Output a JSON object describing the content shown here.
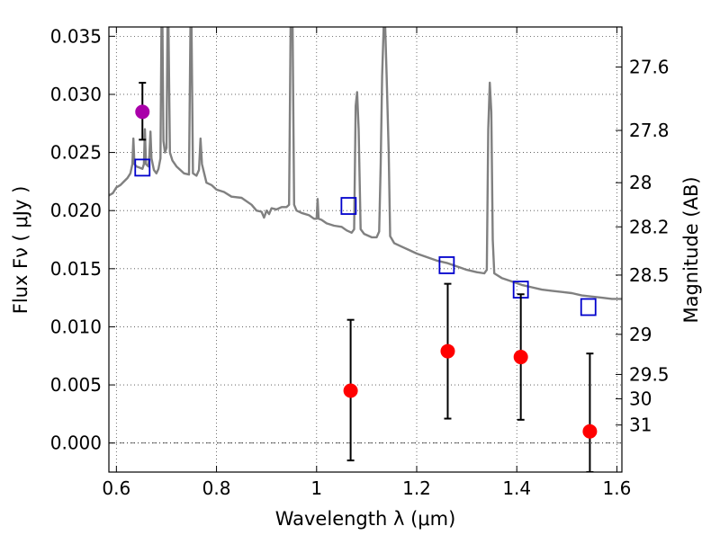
{
  "chart_data": {
    "type": "scatter",
    "xlabel": "Wavelength  λ (μm)",
    "ylabel": "Flux  Fν  ( μJy )",
    "ylabel_right": "Magnitude (AB)",
    "xlim": [
      0.585,
      1.61
    ],
    "ylim": [
      -0.0025,
      0.0358
    ],
    "grid": true,
    "x_ticks": [
      {
        "value": 0.6,
        "label": "0.6"
      },
      {
        "value": 0.8,
        "label": "0.8"
      },
      {
        "value": 1.0,
        "label": "1"
      },
      {
        "value": 1.2,
        "label": "1.2"
      },
      {
        "value": 1.4,
        "label": "1.4"
      },
      {
        "value": 1.6,
        "label": "1.6"
      }
    ],
    "y_ticks": [
      {
        "value": 0.0,
        "label": "0.000"
      },
      {
        "value": 0.005,
        "label": "0.005"
      },
      {
        "value": 0.01,
        "label": "0.010"
      },
      {
        "value": 0.015,
        "label": "0.015"
      },
      {
        "value": 0.02,
        "label": "0.020"
      },
      {
        "value": 0.025,
        "label": "0.025"
      },
      {
        "value": 0.03,
        "label": "0.030"
      },
      {
        "value": 0.035,
        "label": "0.035"
      }
    ],
    "mag_ticks": [
      {
        "flux": 0.03235,
        "label": "27.6"
      },
      {
        "flux": 0.0269,
        "label": "27.8"
      },
      {
        "flux": 0.0224,
        "label": "28"
      },
      {
        "flux": 0.0186,
        "label": "28.2"
      },
      {
        "flux": 0.01445,
        "label": "28.5"
      },
      {
        "flux": 0.00935,
        "label": "29"
      },
      {
        "flux": 0.0059,
        "label": "29.5"
      },
      {
        "flux": 0.0038,
        "label": "30"
      },
      {
        "flux": 0.00155,
        "label": "31"
      }
    ],
    "series": [
      {
        "name": "model-spectrum",
        "kind": "line",
        "color": "#808080",
        "points": [
          [
            0.585,
            0.0213
          ],
          [
            0.593,
            0.0215
          ],
          [
            0.6,
            0.022
          ],
          [
            0.608,
            0.0222
          ],
          [
            0.615,
            0.0225
          ],
          [
            0.622,
            0.0228
          ],
          [
            0.628,
            0.0232
          ],
          [
            0.632,
            0.024
          ],
          [
            0.634,
            0.0262
          ],
          [
            0.636,
            0.024
          ],
          [
            0.64,
            0.0238
          ],
          [
            0.646,
            0.0237
          ],
          [
            0.652,
            0.0236
          ],
          [
            0.655,
            0.024
          ],
          [
            0.657,
            0.027
          ],
          [
            0.659,
            0.024
          ],
          [
            0.664,
            0.0238
          ],
          [
            0.666,
            0.0248
          ],
          [
            0.668,
            0.0268
          ],
          [
            0.67,
            0.0245
          ],
          [
            0.675,
            0.0235
          ],
          [
            0.68,
            0.0232
          ],
          [
            0.684,
            0.0236
          ],
          [
            0.688,
            0.0245
          ],
          [
            0.69,
            0.0358
          ],
          [
            0.692,
            0.0358
          ],
          [
            0.694,
            0.026
          ],
          [
            0.697,
            0.025
          ],
          [
            0.7,
            0.0254
          ],
          [
            0.702,
            0.0358
          ],
          [
            0.704,
            0.0358
          ],
          [
            0.707,
            0.025
          ],
          [
            0.712,
            0.0243
          ],
          [
            0.72,
            0.0238
          ],
          [
            0.735,
            0.0232
          ],
          [
            0.745,
            0.0231
          ],
          [
            0.748,
            0.0358
          ],
          [
            0.75,
            0.0358
          ],
          [
            0.753,
            0.0232
          ],
          [
            0.76,
            0.023
          ],
          [
            0.765,
            0.0235
          ],
          [
            0.768,
            0.0262
          ],
          [
            0.771,
            0.024
          ],
          [
            0.78,
            0.0224
          ],
          [
            0.79,
            0.0222
          ],
          [
            0.8,
            0.0218
          ],
          [
            0.815,
            0.0216
          ],
          [
            0.83,
            0.0212
          ],
          [
            0.85,
            0.0211
          ],
          [
            0.87,
            0.0205
          ],
          [
            0.88,
            0.02
          ],
          [
            0.89,
            0.0199
          ],
          [
            0.895,
            0.0194
          ],
          [
            0.9,
            0.02
          ],
          [
            0.905,
            0.0197
          ],
          [
            0.91,
            0.0202
          ],
          [
            0.92,
            0.0201
          ],
          [
            0.93,
            0.0203
          ],
          [
            0.94,
            0.0203
          ],
          [
            0.945,
            0.0205
          ],
          [
            0.948,
            0.0358
          ],
          [
            0.952,
            0.0358
          ],
          [
            0.955,
            0.0205
          ],
          [
            0.96,
            0.02
          ],
          [
            0.97,
            0.0198
          ],
          [
            0.985,
            0.0196
          ],
          [
            0.995,
            0.0193
          ],
          [
            1.0,
            0.0193
          ],
          [
            1.002,
            0.021
          ],
          [
            1.004,
            0.0193
          ],
          [
            1.01,
            0.0192
          ],
          [
            1.02,
            0.0189
          ],
          [
            1.035,
            0.0187
          ],
          [
            1.05,
            0.0186
          ],
          [
            1.06,
            0.0183
          ],
          [
            1.07,
            0.0181
          ],
          [
            1.075,
            0.0184
          ],
          [
            1.078,
            0.029
          ],
          [
            1.081,
            0.0302
          ],
          [
            1.084,
            0.027
          ],
          [
            1.088,
            0.0184
          ],
          [
            1.095,
            0.018
          ],
          [
            1.11,
            0.0177
          ],
          [
            1.12,
            0.0177
          ],
          [
            1.125,
            0.0182
          ],
          [
            1.128,
            0.024
          ],
          [
            1.131,
            0.0316
          ],
          [
            1.134,
            0.0358
          ],
          [
            1.137,
            0.0358
          ],
          [
            1.14,
            0.0316
          ],
          [
            1.144,
            0.025
          ],
          [
            1.147,
            0.0178
          ],
          [
            1.155,
            0.0172
          ],
          [
            1.17,
            0.0169
          ],
          [
            1.185,
            0.0166
          ],
          [
            1.2,
            0.0163
          ],
          [
            1.22,
            0.016
          ],
          [
            1.24,
            0.0157
          ],
          [
            1.26,
            0.0155
          ],
          [
            1.28,
            0.0152
          ],
          [
            1.3,
            0.0149
          ],
          [
            1.32,
            0.0147
          ],
          [
            1.335,
            0.0146
          ],
          [
            1.34,
            0.0149
          ],
          [
            1.343,
            0.027
          ],
          [
            1.346,
            0.031
          ],
          [
            1.349,
            0.0285
          ],
          [
            1.352,
            0.0175
          ],
          [
            1.355,
            0.0146
          ],
          [
            1.37,
            0.0142
          ],
          [
            1.39,
            0.0139
          ],
          [
            1.41,
            0.0136
          ],
          [
            1.43,
            0.0134
          ],
          [
            1.45,
            0.0132
          ],
          [
            1.47,
            0.0131
          ],
          [
            1.49,
            0.013
          ],
          [
            1.51,
            0.0129
          ],
          [
            1.53,
            0.0127
          ],
          [
            1.55,
            0.0126
          ],
          [
            1.57,
            0.0125
          ],
          [
            1.59,
            0.0124
          ],
          [
            1.61,
            0.0124
          ]
        ]
      },
      {
        "name": "model-photometry",
        "kind": "open-square",
        "color": "#0000cc",
        "points": [
          {
            "x": 0.652,
            "y": 0.0237
          },
          {
            "x": 1.064,
            "y": 0.0204
          },
          {
            "x": 1.26,
            "y": 0.0153
          },
          {
            "x": 1.408,
            "y": 0.0132
          },
          {
            "x": 1.543,
            "y": 0.0117
          }
        ]
      },
      {
        "name": "observed-photometry",
        "kind": "filled-circle-errorbar",
        "color": "#ff0000",
        "points": [
          {
            "x": 1.068,
            "y": 0.0045,
            "err_low": 0.006,
            "err_high": 0.0061
          },
          {
            "x": 1.262,
            "y": 0.0079,
            "err_low": 0.0058,
            "err_high": 0.0058
          },
          {
            "x": 1.408,
            "y": 0.0074,
            "err_low": 0.0054,
            "err_high": 0.0054
          },
          {
            "x": 1.546,
            "y": 0.001,
            "err_low": 0.0035,
            "err_high": 0.0067
          }
        ]
      },
      {
        "name": "optical-photometry",
        "kind": "filled-circle-errorbar",
        "color": "#aa00aa",
        "points": [
          {
            "x": 0.652,
            "y": 0.0285,
            "err_low": 0.0024,
            "err_high": 0.0025
          }
        ]
      }
    ],
    "zero_line": 0.0
  }
}
